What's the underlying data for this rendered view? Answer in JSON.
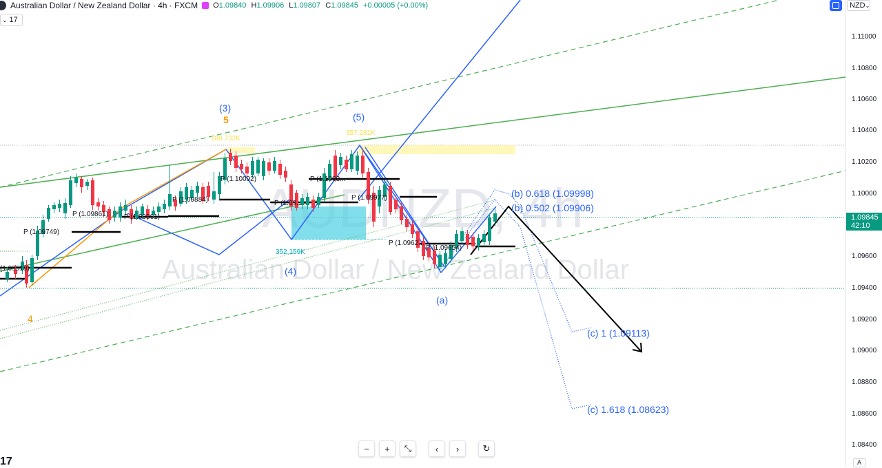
{
  "header": {
    "title": "Australian Dollar / New Zealand Dollar · 4h · FXCM",
    "ohlc": [
      {
        "k": "O",
        "v": "1.09840"
      },
      {
        "k": "H",
        "v": "1.09906"
      },
      {
        "k": "L",
        "v": "1.09807"
      },
      {
        "k": "C",
        "v": "1.09845"
      }
    ],
    "change": "+0.00005 (+0.00%)",
    "volume_label": "17",
    "currency": "NZD"
  },
  "watermark": {
    "symbol": "AUDNZD, 4h",
    "name": "Australian Dollar / New Zealand Dollar"
  },
  "price_axis": {
    "labels": [
      "1.11000",
      "1.10800",
      "1.10600",
      "1.10400",
      "1.10200",
      "1.10000",
      "1.09600",
      "1.09400",
      "1.09200",
      "1.09000",
      "1.08800",
      "1.08600",
      "1.08400"
    ],
    "current_price": "1.09845",
    "countdown": "42:10"
  },
  "annotations": {
    "wave3": "(3)",
    "wave5_top": "5",
    "wave4_low": "4",
    "wave4": "(4)",
    "wave5": "(5)",
    "wave_a": "(a)",
    "vol_top1": "188.732K",
    "vol_top2": "357.281K",
    "vol_box": "352.159K",
    "b618": "(b) 0.618 (1.09998)",
    "b502": "(b) 0.502 (1.09906)",
    "c1": "(c) 1 (1.09113)",
    "c1618": "(c) 1.618 (1.08623)",
    "pivots": [
      "P (1.09749)",
      "P (1.09861)",
      "P (1.09861)",
      "P (1.09884)",
      "P (1.10092)",
      "P (1.09...",
      "P (1.1003...",
      "P (1.09977)",
      "P (1.0962...",
      "P (1.09654)",
      "(1.09519)"
    ]
  },
  "toolbar": {
    "zoom_out": "−",
    "zoom_in": "+",
    "reset": "⤡",
    "prev": "‹",
    "next": "›",
    "refresh": "↻"
  },
  "axis_auto": "A",
  "colors": {
    "up": "#089981",
    "down": "#f23645",
    "blue": "#2962ff",
    "green": "#4caf50",
    "orange": "#ff9800",
    "black": "#000000"
  }
}
